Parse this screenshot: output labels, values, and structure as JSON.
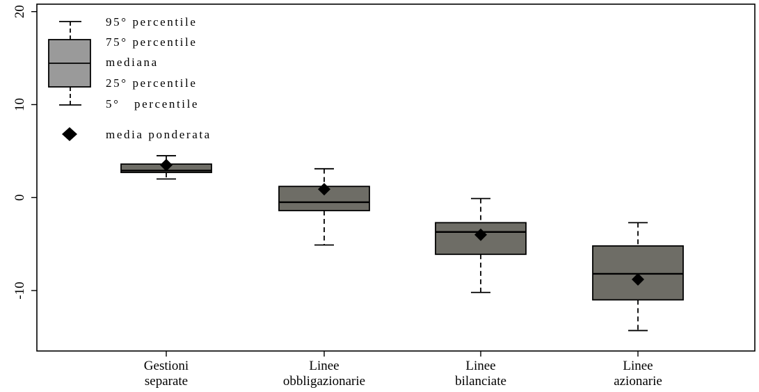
{
  "chart_data": {
    "type": "boxplot",
    "title": "",
    "xlabel": "",
    "ylabel": "",
    "ylim": [
      -16.5,
      20.8
    ],
    "yticks": [
      -10,
      0,
      10,
      20
    ],
    "ytick_labels": [
      "-10",
      "0",
      "10",
      "20"
    ],
    "categories": [
      {
        "line1": "Gestioni",
        "line2": "separate"
      },
      {
        "line1": "Linee",
        "line2": "obbligazionarie"
      },
      {
        "line1": "Linee",
        "line2": "bilanciate"
      },
      {
        "line1": "Linee",
        "line2": "azionarie"
      }
    ],
    "boxes": [
      {
        "p5": 2.0,
        "p25": 2.7,
        "median": 2.9,
        "p75": 3.6,
        "p95": 4.5,
        "weighted_mean": 3.5
      },
      {
        "p5": -5.1,
        "p25": -1.4,
        "median": -0.5,
        "p75": 1.2,
        "p95": 3.1,
        "weighted_mean": 0.9
      },
      {
        "p5": -10.2,
        "p25": -6.1,
        "median": -3.7,
        "p75": -2.7,
        "p95": -0.1,
        "weighted_mean": -4.0
      },
      {
        "p5": -14.3,
        "p25": -11.0,
        "median": -8.2,
        "p75": -5.2,
        "p95": -2.7,
        "weighted_mean": -8.8
      }
    ],
    "legend": {
      "placement": "top-left",
      "p95_label": "95° percentile",
      "p75_label": "75° percentile",
      "median_label": "mediana",
      "p25_label": "25° percentile",
      "p5_label": "5°   percentile",
      "mean_label": "media ponderata"
    },
    "grid": false,
    "colors": {
      "box_fill": "#6e6d66",
      "legend_box_fill": "#9a9a9a",
      "stroke": "#000000",
      "marker": "#000000"
    }
  }
}
